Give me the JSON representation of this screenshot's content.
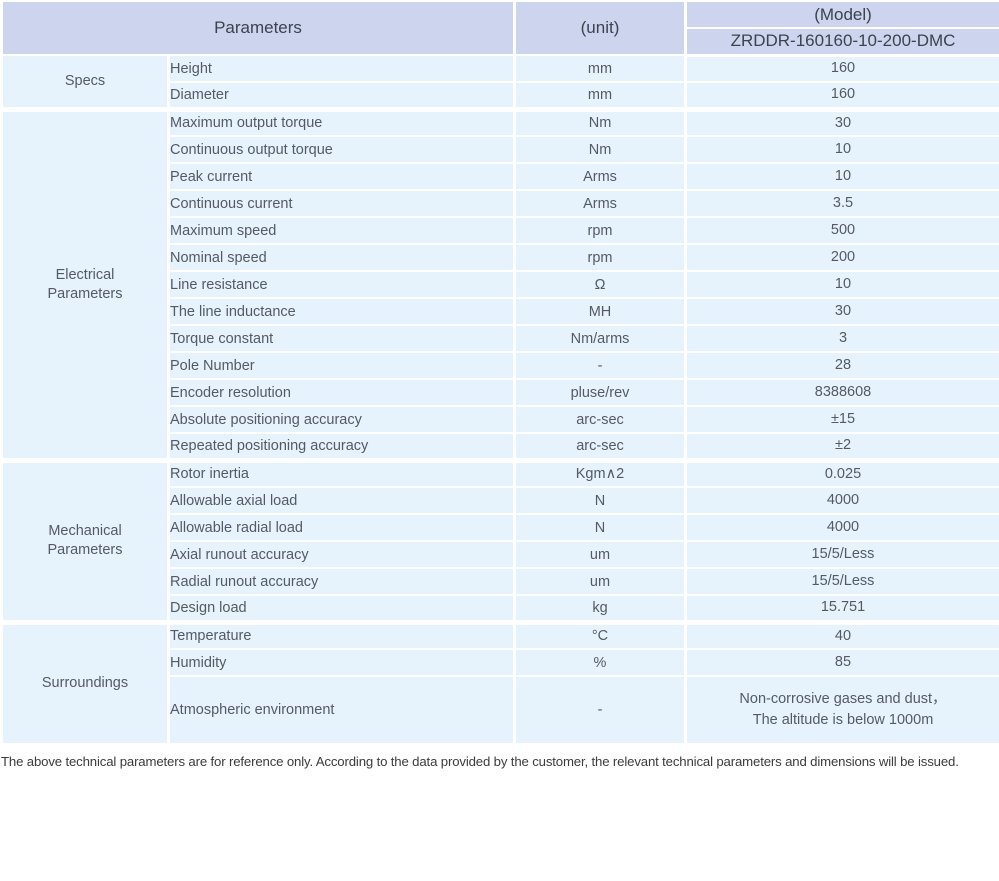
{
  "table": {
    "header": {
      "parameters_label": "Parameters",
      "unit_label": "(unit)",
      "model_label": "(Model)",
      "model_code": "ZRDDR-160160-10-200-DMC"
    },
    "sections": [
      {
        "label": "Specs",
        "rows": [
          {
            "name": "Height",
            "unit": "mm",
            "value": "160"
          },
          {
            "name": "Diameter",
            "unit": "mm",
            "value": "160"
          }
        ]
      },
      {
        "label": "Electrical\nParameters",
        "rows": [
          {
            "name": "Maximum output torque",
            "unit": "Nm",
            "value": "30"
          },
          {
            "name": "Continuous output torque",
            "unit": "Nm",
            "value": "10"
          },
          {
            "name": "Peak current",
            "unit": "Arms",
            "value": "10"
          },
          {
            "name": "Continuous current",
            "unit": "Arms",
            "value": "3.5"
          },
          {
            "name": "Maximum speed",
            "unit": "rpm",
            "value": "500"
          },
          {
            "name": "Nominal speed",
            "unit": "rpm",
            "value": "200"
          },
          {
            "name": "Line resistance",
            "unit": "Ω",
            "value": "10"
          },
          {
            "name": "The line inductance",
            "unit": "MH",
            "value": "30"
          },
          {
            "name": "Torque constant",
            "unit": "Nm/arms",
            "value": "3"
          },
          {
            "name": "Pole Number",
            "unit": "-",
            "value": "28"
          },
          {
            "name": "Encoder resolution",
            "unit": "pluse/rev",
            "value": "8388608"
          },
          {
            "name": "Absolute positioning accuracy",
            "unit": "arc-sec",
            "value": "±15"
          },
          {
            "name": "Repeated positioning accuracy",
            "unit": "arc-sec",
            "value": "±2"
          }
        ]
      },
      {
        "label": "Mechanical\nParameters",
        "rows": [
          {
            "name": "Rotor inertia",
            "unit": "Kgm∧2",
            "value": "0.025"
          },
          {
            "name": "Allowable axial load",
            "unit": "N",
            "value": "4000"
          },
          {
            "name": "Allowable radial load",
            "unit": "N",
            "value": "4000"
          },
          {
            "name": "Axial runout accuracy",
            "unit": "um",
            "value": "15/5/Less"
          },
          {
            "name": "Radial runout accuracy",
            "unit": "um",
            "value": "15/5/Less"
          },
          {
            "name": "Design load",
            "unit": "kg",
            "value": "15.751"
          }
        ]
      },
      {
        "label": "Surroundings",
        "rows": [
          {
            "name": "Temperature",
            "unit": "°C",
            "value": "40"
          },
          {
            "name": "Humidity",
            "unit": "%",
            "value": "85"
          },
          {
            "name": "Atmospheric environment",
            "unit": "-",
            "value": "Non-corrosive gases and dust，\nThe altitude is below 1000m"
          }
        ]
      }
    ]
  },
  "footer": {
    "note": "The above technical parameters are for reference only. According to the data provided by the customer, the relevant technical parameters and dimensions will be issued."
  },
  "colors": {
    "header_bg": "#ccd5ed",
    "row_bg": "#e6f3fc",
    "grid": "#ffffff",
    "header_text": "#3d424e",
    "body_text": "#545a63"
  }
}
